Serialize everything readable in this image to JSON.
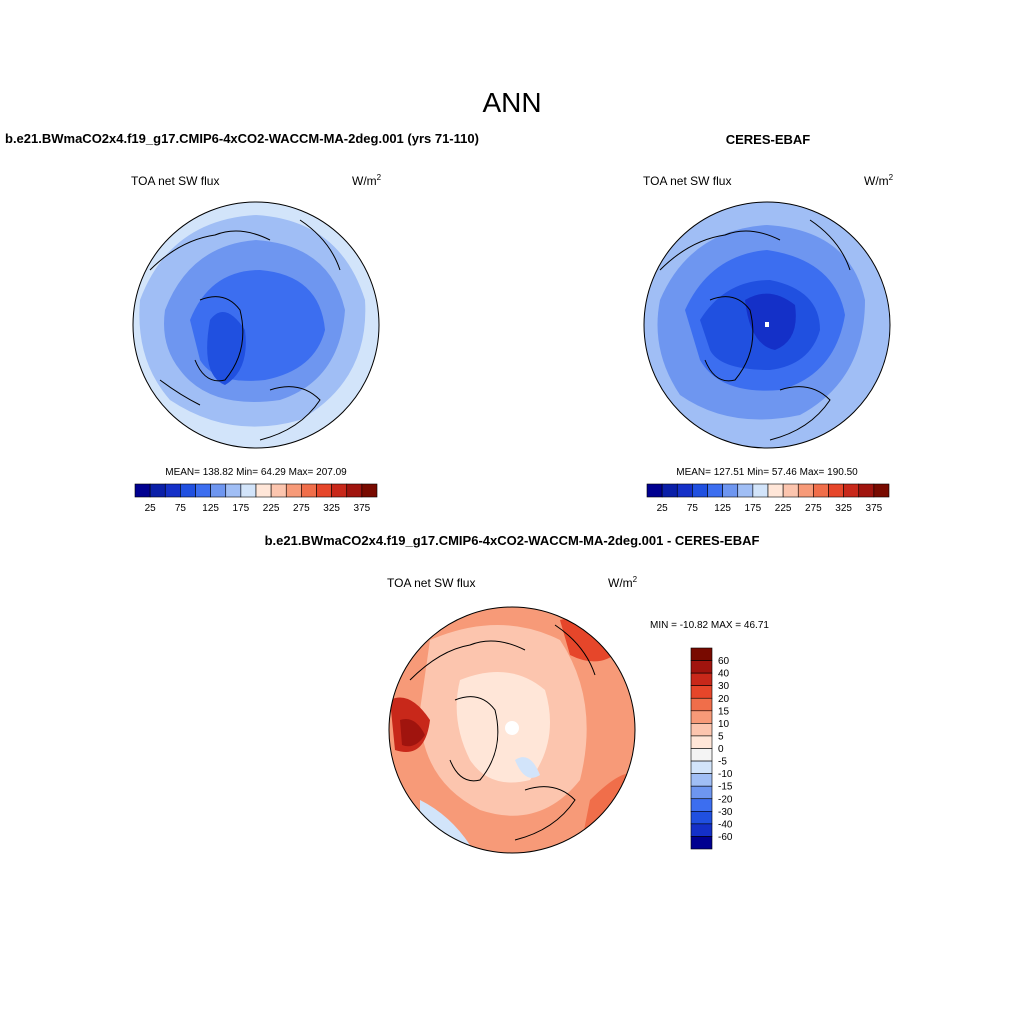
{
  "title": "ANN",
  "panels": [
    {
      "title": "b.e21.BWmaCO2x4.f19_g17.CMIP6-4xCO2-WACCM-MA-2deg.001 (yrs 71-110)",
      "variable": "TOA net SW flux",
      "units": "W/m",
      "units_sup": "2",
      "stats": "MEAN= 138.82  Min=  64.29  Max= 207.09"
    },
    {
      "title": "CERES-EBAF",
      "variable": "TOA net SW flux",
      "units": "W/m",
      "units_sup": "2",
      "stats": "MEAN= 127.51  Min=  57.46  Max= 190.50"
    },
    {
      "title": "b.e21.BWmaCO2x4.f19_g17.CMIP6-4xCO2-WACCM-MA-2deg.001 - CERES-EBAF",
      "variable": "TOA net SW flux",
      "units": "W/m",
      "units_sup": "2",
      "stats": "MIN = -10.82 MAX =  46.71"
    }
  ],
  "colorbar": {
    "colors": [
      "#000090",
      "#0a1fa8",
      "#1430c8",
      "#2050e0",
      "#3c6ef0",
      "#6e96f0",
      "#a0bef5",
      "#d2e4fa",
      "#ffe6d8",
      "#fcc5ae",
      "#f79a78",
      "#f06e4a",
      "#e6462a",
      "#c8281a",
      "#a0140e",
      "#780a00"
    ],
    "labels": [
      25,
      75,
      125,
      175,
      225,
      275,
      325,
      375
    ]
  },
  "diff_colorbar": {
    "colors": [
      "#780a00",
      "#a0140e",
      "#c8281a",
      "#e6462a",
      "#f06e4a",
      "#f79a78",
      "#fcc5ae",
      "#ffe6d8",
      "#f4f4f4",
      "#d2e4fa",
      "#a0bef5",
      "#6e96f0",
      "#3c6ef0",
      "#2050e0",
      "#1430c8",
      "#000090"
    ],
    "labels": [
      60,
      40,
      30,
      20,
      15,
      10,
      5,
      0,
      -5,
      -10,
      -15,
      -20,
      -30,
      -40,
      -60
    ]
  }
}
